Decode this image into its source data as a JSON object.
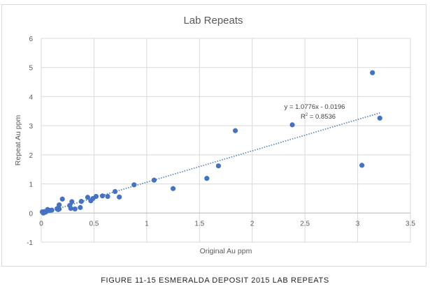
{
  "chart_data": {
    "type": "scatter",
    "title": "Lab Repeats",
    "xlabel": "Original Au ppm",
    "ylabel": "Repeat Au ppm",
    "xlim": [
      0,
      3.5
    ],
    "ylim": [
      -1,
      6
    ],
    "x_ticks": [
      "0",
      "0.5",
      "1",
      "1.5",
      "2",
      "2.5",
      "3",
      "3.5"
    ],
    "y_ticks": [
      "-1",
      "0",
      "1",
      "2",
      "3",
      "4",
      "5",
      "6"
    ],
    "grid": true,
    "marker_color": "#4472c4",
    "trendline": {
      "type": "linear",
      "slope": 1.0776,
      "intercept": -0.0196,
      "equation": "y = 1.0776x - 0.0196",
      "r2_label": "R",
      "r2_value": " = 0.8536",
      "color": "#4a7fb5"
    },
    "points": [
      [
        3.14,
        4.82
      ],
      [
        3.21,
        3.26
      ],
      [
        3.04,
        1.64
      ],
      [
        2.38,
        3.03
      ],
      [
        1.84,
        2.83
      ],
      [
        1.68,
        1.62
      ],
      [
        1.57,
        1.19
      ],
      [
        1.25,
        0.84
      ],
      [
        1.07,
        1.13
      ],
      [
        0.88,
        0.97
      ],
      [
        0.7,
        0.74
      ],
      [
        0.74,
        0.55
      ],
      [
        0.63,
        0.57
      ],
      [
        0.58,
        0.59
      ],
      [
        0.52,
        0.57
      ],
      [
        0.49,
        0.5
      ],
      [
        0.47,
        0.42
      ],
      [
        0.44,
        0.54
      ],
      [
        0.38,
        0.4
      ],
      [
        0.37,
        0.19
      ],
      [
        0.32,
        0.14
      ],
      [
        0.29,
        0.39
      ],
      [
        0.28,
        0.16
      ],
      [
        0.27,
        0.26
      ],
      [
        0.2,
        0.48
      ],
      [
        0.17,
        0.28
      ],
      [
        0.17,
        0.14
      ],
      [
        0.16,
        0.12
      ],
      [
        0.15,
        0.15
      ],
      [
        0.1,
        0.1
      ],
      [
        0.08,
        0.09
      ],
      [
        0.06,
        0.12
      ],
      [
        0.05,
        0.06
      ],
      [
        0.04,
        0.03
      ],
      [
        0.03,
        0.05
      ],
      [
        0.02,
        0.02
      ],
      [
        0.01,
        0.04
      ],
      [
        0.02,
        0.0
      ]
    ]
  },
  "caption": "FIGURE 11-15 ESMERALDA DEPOSIT 2015 LAB REPEATS"
}
